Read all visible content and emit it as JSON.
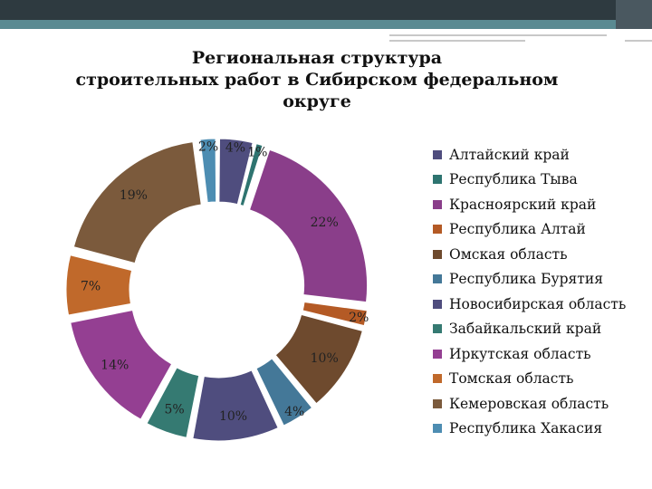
{
  "slide": {
    "title_lines": [
      "Региональная структура",
      "строительных работ в Сибирском федеральном",
      "округе"
    ]
  },
  "chart_data": {
    "type": "pie",
    "style": "exploded doughnut",
    "title": "Региональная структура строительных работ в Сибирском федеральном округе",
    "legend_position": "right",
    "categories": [
      "Алтайский край",
      "Республика Тыва",
      "Красноярский край",
      "Республика Алтай",
      "Омская область",
      "Республика Бурятия",
      "Новосибирская область",
      "Забайкальский край",
      "Иркутская область",
      "Томская область",
      "Кемеровская область",
      "Республика Хакасия"
    ],
    "values": [
      4,
      1,
      22,
      2,
      10,
      4,
      10,
      5,
      14,
      7,
      19,
      2
    ],
    "labels": [
      "4%",
      "1%",
      "22%",
      "2%",
      "10%",
      "4%",
      "10%",
      "5%",
      "14%",
      "7%",
      "19%",
      "2%"
    ],
    "colors": [
      "#4f4d7e",
      "#2e7470",
      "#8a3e8a",
      "#b45a25",
      "#6e4a2e",
      "#447898",
      "#4f4d7e",
      "#357a72",
      "#943f92",
      "#c0692b",
      "#7b5a3c",
      "#4d8db2"
    ]
  }
}
